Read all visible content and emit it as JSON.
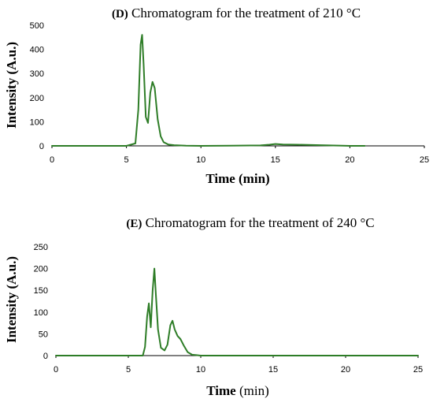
{
  "chart_data": [
    {
      "type": "line",
      "title_tag": "(D)",
      "title_text": " Chromatogram for the treatment of 210 °C",
      "xlabel": "Time (min)",
      "ylabel": "Intensity (A.u.)",
      "xlim": [
        0,
        25
      ],
      "ylim": [
        0,
        500
      ],
      "xticks": [
        "0",
        "5",
        "10",
        "15",
        "20",
        "25"
      ],
      "yticks": [
        "0",
        "100",
        "200",
        "300",
        "400",
        "500"
      ],
      "grid": false,
      "line_color": "#2e7d27",
      "series": [
        {
          "x": [
            0,
            5.0,
            5.6,
            5.8,
            5.95,
            6.05,
            6.15,
            6.3,
            6.45,
            6.6,
            6.75,
            6.9,
            7.1,
            7.3,
            7.5,
            7.8,
            8.2,
            9.0,
            10.0,
            12.0,
            14.0,
            14.6,
            15.0,
            15.5,
            16.5,
            18.0,
            19.5,
            20.0,
            21.0
          ],
          "y": [
            0,
            0,
            10,
            150,
            420,
            460,
            340,
            120,
            95,
            220,
            265,
            240,
            110,
            40,
            15,
            6,
            3,
            1,
            0,
            1,
            2,
            5,
            8,
            6,
            5,
            3,
            1,
            0,
            0
          ]
        }
      ]
    },
    {
      "type": "line",
      "title_tag": "(E)",
      "title_text": " Chromatogram for the treatment of 240 °C",
      "xlabel_bold": "Time",
      "xlabel_rest": " (min)",
      "ylabel": "Intensity (A.u.)",
      "xlim": [
        0,
        25
      ],
      "ylim": [
        0,
        250
      ],
      "xticks": [
        "0",
        "5",
        "10",
        "15",
        "20",
        "25"
      ],
      "yticks": [
        "0",
        "50",
        "100",
        "150",
        "200",
        "250"
      ],
      "grid": false,
      "line_color": "#2e7d27",
      "series": [
        {
          "x": [
            0,
            6.0,
            6.15,
            6.3,
            6.42,
            6.55,
            6.68,
            6.8,
            6.9,
            7.05,
            7.25,
            7.5,
            7.7,
            7.9,
            8.05,
            8.2,
            8.4,
            8.6,
            8.85,
            9.1,
            9.4,
            9.7,
            10.0,
            12.0,
            25.0
          ],
          "y": [
            0,
            0,
            20,
            90,
            120,
            65,
            150,
            200,
            140,
            60,
            18,
            12,
            25,
            70,
            80,
            60,
            45,
            38,
            22,
            8,
            2,
            1,
            0,
            0,
            0
          ]
        }
      ]
    }
  ]
}
